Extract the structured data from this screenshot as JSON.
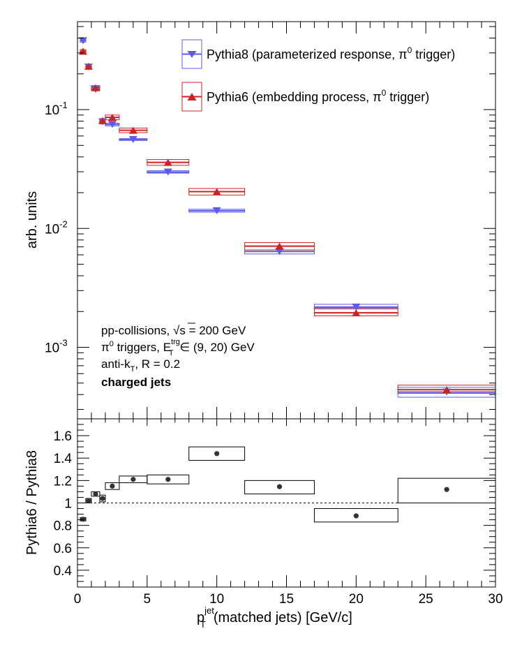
{
  "chart_data": [
    {
      "type": "scatter",
      "panel": "top",
      "ylabel": "arb. units",
      "yscale": "log",
      "ylim": [
        0.00025,
        0.55
      ],
      "xlim": [
        0,
        30
      ],
      "ytick_labels": [
        "10",
        "10",
        "10"
      ],
      "ytick_exponents": [
        "-1",
        "-2",
        "-3"
      ],
      "grid": false,
      "legend_position": "top-right",
      "series": [
        {
          "name": "Pythia8 (parameterized response, π",
          "name_sup": "0",
          "name_end": " trigger)",
          "marker": "triangle-down",
          "color": "#5c5ce8",
          "points": [
            {
              "x": 0.4,
              "xlo": 0.2,
              "xhi": 0.6,
              "y": 0.38,
              "ylo": 0.37,
              "yhi": 0.39
            },
            {
              "x": 0.8,
              "xlo": 0.6,
              "xhi": 1.0,
              "y": 0.228,
              "ylo": 0.222,
              "yhi": 0.234
            },
            {
              "x": 1.3,
              "xlo": 1.0,
              "xhi": 1.6,
              "y": 0.148,
              "ylo": 0.144,
              "yhi": 0.152
            },
            {
              "x": 1.8,
              "xlo": 1.6,
              "xhi": 2.0,
              "y": 0.079,
              "ylo": 0.076,
              "yhi": 0.082
            },
            {
              "x": 2.5,
              "xlo": 2.0,
              "xhi": 3.0,
              "y": 0.075,
              "ylo": 0.073,
              "yhi": 0.077
            },
            {
              "x": 4.0,
              "xlo": 3.0,
              "xhi": 5.0,
              "y": 0.056,
              "ylo": 0.055,
              "yhi": 0.057
            },
            {
              "x": 6.5,
              "xlo": 5.0,
              "xhi": 8.0,
              "y": 0.0298,
              "ylo": 0.0292,
              "yhi": 0.0306
            },
            {
              "x": 10.0,
              "xlo": 8.0,
              "xhi": 12.0,
              "y": 0.0141,
              "ylo": 0.0137,
              "yhi": 0.0145
            },
            {
              "x": 14.5,
              "xlo": 12.0,
              "xhi": 17.0,
              "y": 0.0064,
              "ylo": 0.0061,
              "yhi": 0.0066
            },
            {
              "x": 20.0,
              "xlo": 17.0,
              "xhi": 23.0,
              "y": 0.00218,
              "ylo": 0.0021,
              "yhi": 0.0023
            },
            {
              "x": 26.5,
              "xlo": 23.0,
              "xhi": 30.0,
              "y": 0.00042,
              "ylo": 0.00038,
              "yhi": 0.00046
            }
          ]
        },
        {
          "name": "Pythia6 (embedding process, π",
          "name_sup": "0",
          "name_end": " trigger)",
          "marker": "triangle-up",
          "color": "#cc2222",
          "points": [
            {
              "x": 0.4,
              "xlo": 0.2,
              "xhi": 0.6,
              "y": 0.31,
              "ylo": 0.3,
              "yhi": 0.32
            },
            {
              "x": 0.8,
              "xlo": 0.6,
              "xhi": 1.0,
              "y": 0.232,
              "ylo": 0.225,
              "yhi": 0.239
            },
            {
              "x": 1.3,
              "xlo": 1.0,
              "xhi": 1.6,
              "y": 0.153,
              "ylo": 0.147,
              "yhi": 0.159
            },
            {
              "x": 1.8,
              "xlo": 1.6,
              "xhi": 2.0,
              "y": 0.081,
              "ylo": 0.078,
              "yhi": 0.084
            },
            {
              "x": 2.5,
              "xlo": 2.0,
              "xhi": 3.0,
              "y": 0.086,
              "ylo": 0.082,
              "yhi": 0.09
            },
            {
              "x": 4.0,
              "xlo": 3.0,
              "xhi": 5.0,
              "y": 0.067,
              "ylo": 0.064,
              "yhi": 0.07
            },
            {
              "x": 6.5,
              "xlo": 5.0,
              "xhi": 8.0,
              "y": 0.036,
              "ylo": 0.034,
              "yhi": 0.038
            },
            {
              "x": 10.0,
              "xlo": 8.0,
              "xhi": 12.0,
              "y": 0.0204,
              "ylo": 0.0191,
              "yhi": 0.0217
            },
            {
              "x": 14.5,
              "xlo": 12.0,
              "xhi": 17.0,
              "y": 0.0071,
              "ylo": 0.0066,
              "yhi": 0.0076
            },
            {
              "x": 20.0,
              "xlo": 17.0,
              "xhi": 23.0,
              "y": 0.00195,
              "ylo": 0.00184,
              "yhi": 0.00214
            },
            {
              "x": 26.5,
              "xlo": 23.0,
              "xhi": 30.0,
              "y": 0.00044,
              "ylo": 0.00041,
              "yhi": 0.00048
            }
          ]
        }
      ],
      "annotations": {
        "line1": "pp-collisions, ",
        "line1_sqrt": "√s",
        "line1_end": " = 200 GeV",
        "line2": "π",
        "line2_sup": "0",
        "line2_mid": " triggers, E",
        "line2_sup2": "trg",
        "line2_sub2": "T",
        "line2_end": " ∈ (9, 20) GeV",
        "line3": "anti-k",
        "line3_sub": "T",
        "line3_end": ", R = 0.2",
        "line4": "charged jets"
      }
    },
    {
      "type": "scatter",
      "panel": "bottom",
      "ylabel": "Pythia6 / Pythia8",
      "xlabel": "p",
      "xlabel_sup": "jet",
      "xlabel_sub": "T",
      "xlabel_end": "(matched jets) [GeV/c]",
      "xlim": [
        0,
        30
      ],
      "ylim": [
        0.25,
        1.75
      ],
      "xticks": [
        0,
        5,
        10,
        15,
        20,
        25,
        30
      ],
      "xtick_labels": [
        "0",
        "5",
        "10",
        "15",
        "20",
        "25",
        "30"
      ],
      "yticks": [
        0.4,
        0.6,
        0.8,
        1.0,
        1.2,
        1.4,
        1.6
      ],
      "ytick_labels": [
        "0.4",
        "0.6",
        "0.8",
        "1",
        "1.2",
        "1.4",
        "1.6"
      ],
      "reference_line": 1.0,
      "grid": false,
      "series": [
        {
          "marker": "circle",
          "color": "#333333",
          "points": [
            {
              "x": 0.4,
              "xlo": 0.2,
              "xhi": 0.6,
              "y": 0.855,
              "ylo": 0.84,
              "yhi": 0.87
            },
            {
              "x": 0.8,
              "xlo": 0.6,
              "xhi": 1.0,
              "y": 1.02,
              "ylo": 1.0,
              "yhi": 1.04
            },
            {
              "x": 1.3,
              "xlo": 1.0,
              "xhi": 1.6,
              "y": 1.08,
              "ylo": 1.06,
              "yhi": 1.1
            },
            {
              "x": 1.8,
              "xlo": 1.6,
              "xhi": 2.0,
              "y": 1.04,
              "ylo": 1.01,
              "yhi": 1.07
            },
            {
              "x": 2.5,
              "xlo": 2.0,
              "xhi": 3.0,
              "y": 1.15,
              "ylo": 1.12,
              "yhi": 1.18
            },
            {
              "x": 4.0,
              "xlo": 3.0,
              "xhi": 5.0,
              "y": 1.21,
              "ylo": 1.18,
              "yhi": 1.24
            },
            {
              "x": 6.5,
              "xlo": 5.0,
              "xhi": 8.0,
              "y": 1.21,
              "ylo": 1.17,
              "yhi": 1.25
            },
            {
              "x": 10.0,
              "xlo": 8.0,
              "xhi": 12.0,
              "y": 1.44,
              "ylo": 1.38,
              "yhi": 1.5
            },
            {
              "x": 14.5,
              "xlo": 12.0,
              "xhi": 17.0,
              "y": 1.145,
              "ylo": 1.08,
              "yhi": 1.2
            },
            {
              "x": 20.0,
              "xlo": 17.0,
              "xhi": 23.0,
              "y": 0.885,
              "ylo": 0.83,
              "yhi": 0.95
            },
            {
              "x": 26.5,
              "xlo": 23.0,
              "xhi": 30.0,
              "y": 1.12,
              "ylo": 1.0,
              "yhi": 1.22
            }
          ]
        }
      ]
    }
  ]
}
